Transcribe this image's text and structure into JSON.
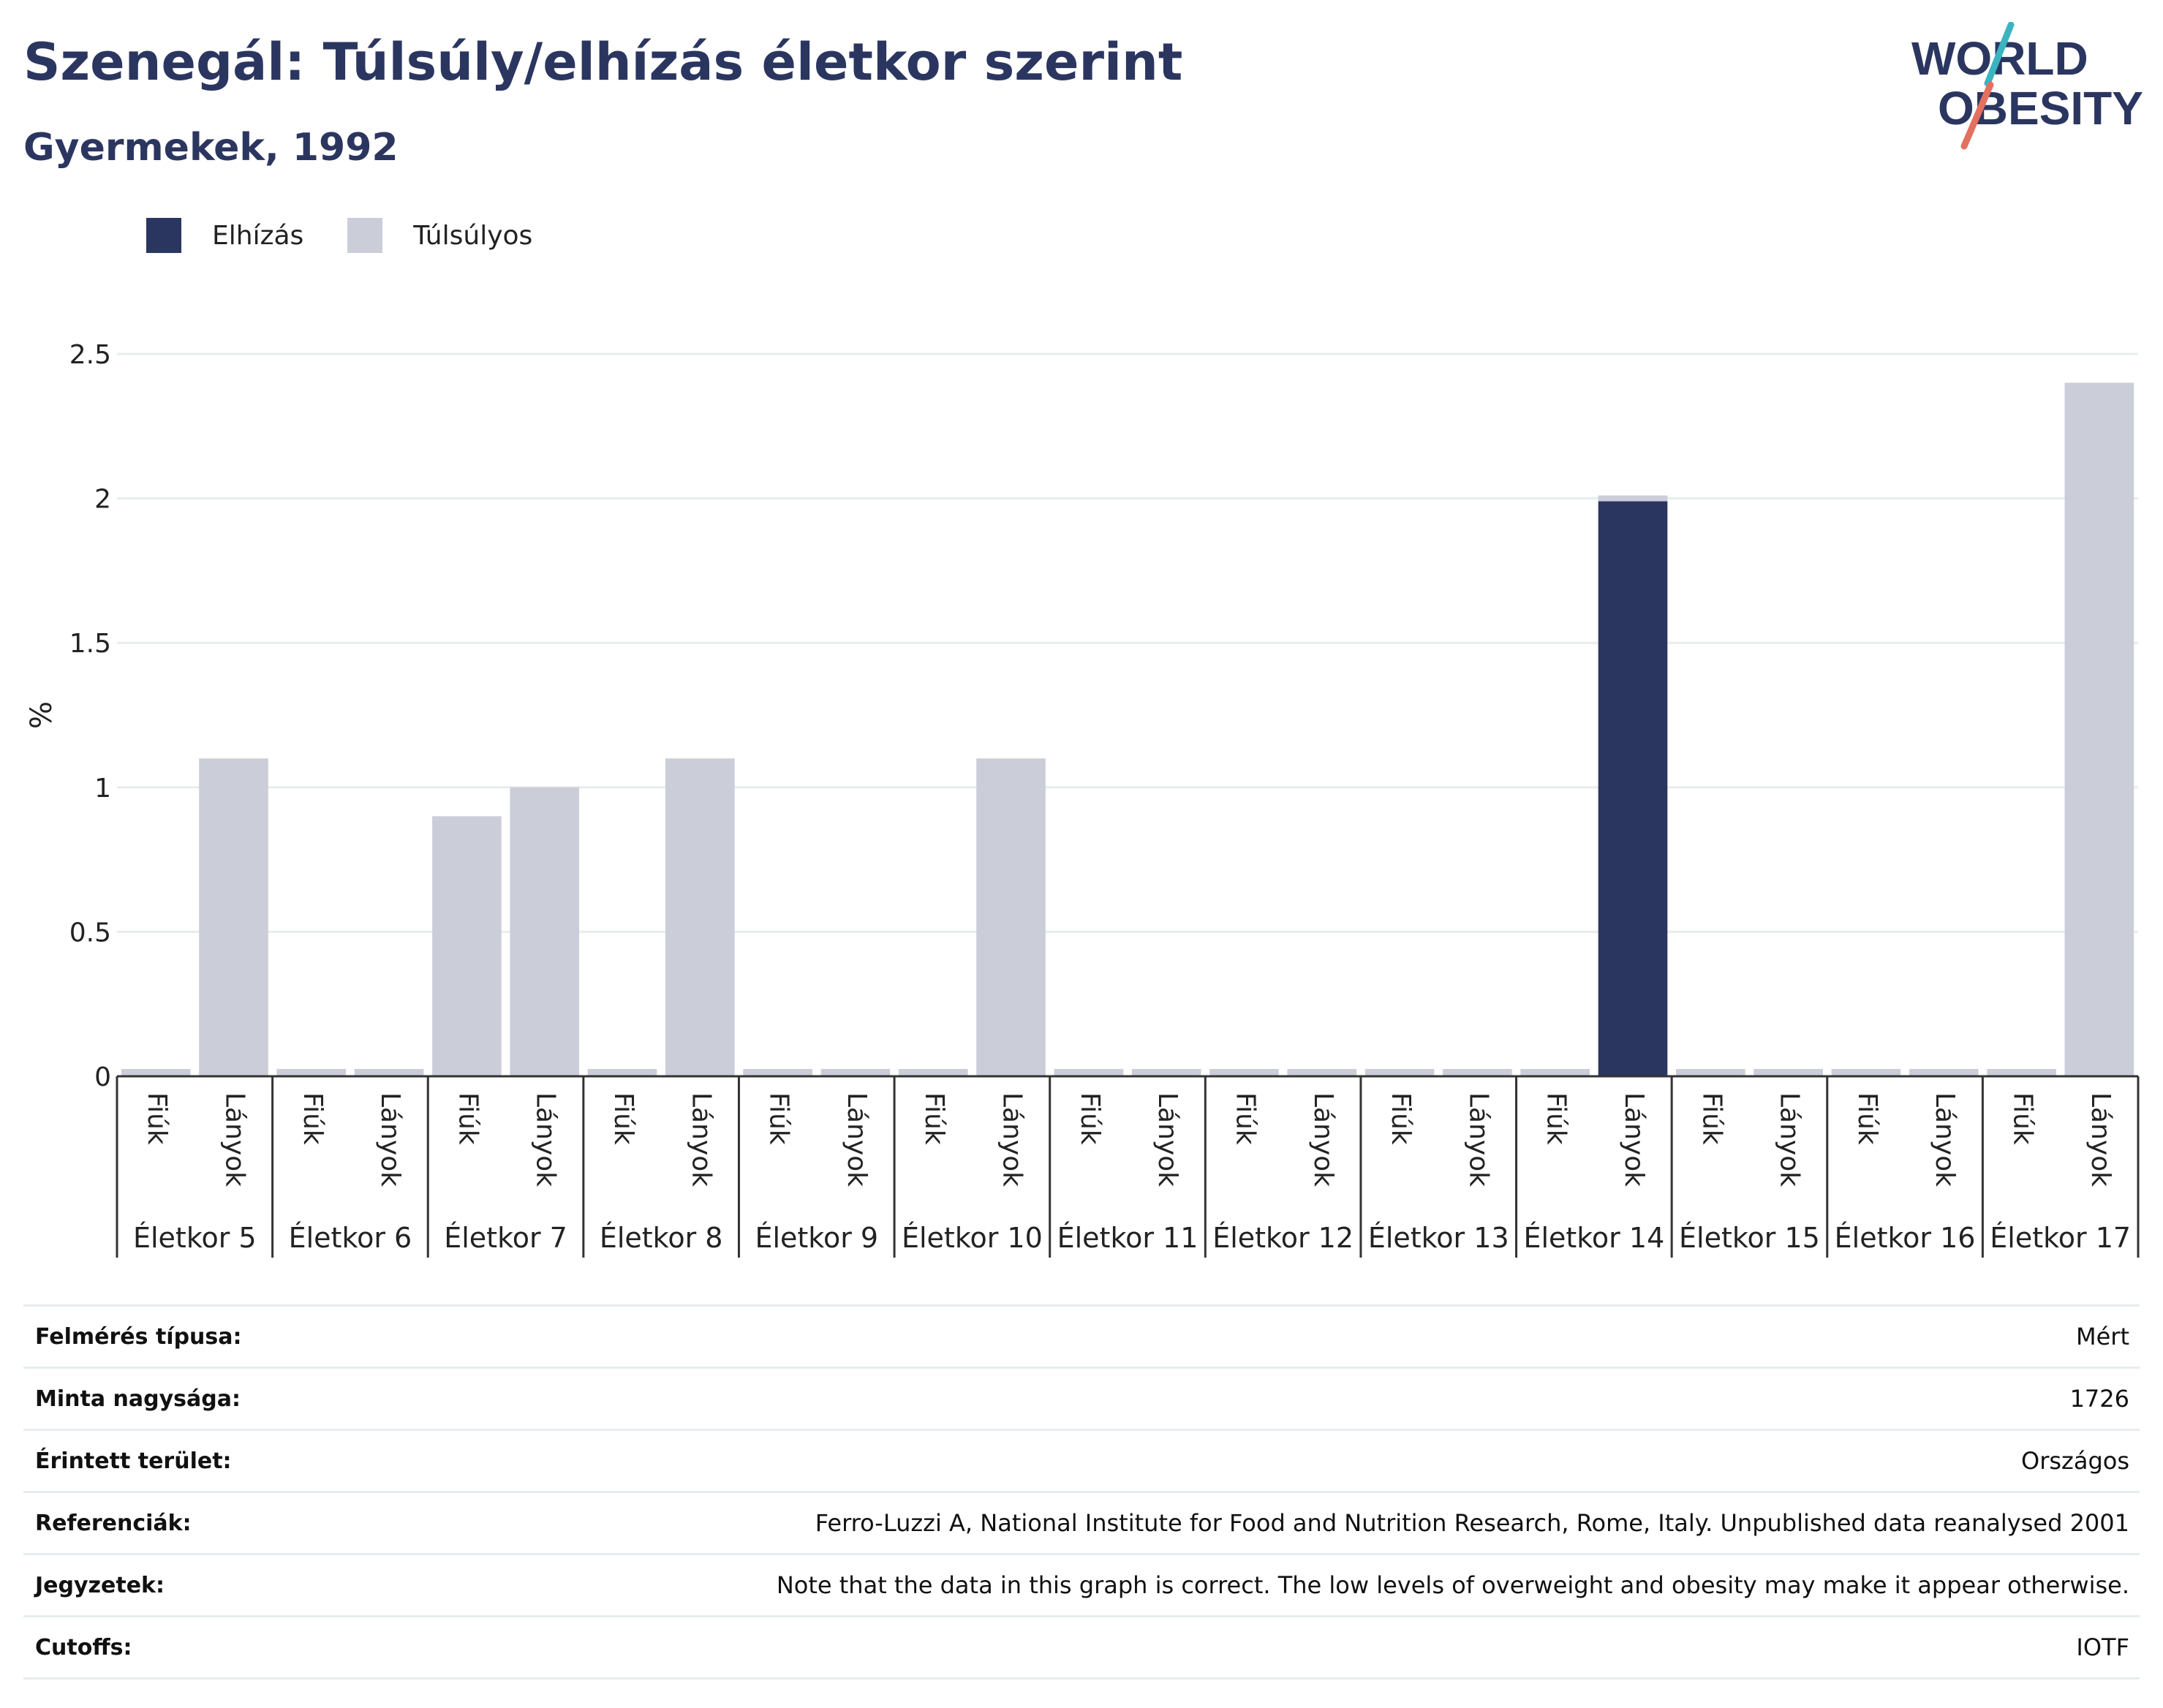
{
  "title": "Szenegál: Túlsúly/elhízás életkor szerint",
  "subtitle": "Gyermekek, 1992",
  "logo": {
    "line1": "WORLD",
    "line2": "OBESITY"
  },
  "colors": {
    "obesity": "#2b3660",
    "overweight": "#cbcdd8",
    "grid": "#e8eced",
    "text": "#2b3660"
  },
  "legend": [
    {
      "label": "Elhízás",
      "color": "#2b3660"
    },
    {
      "label": "Túlsúlyos",
      "color": "#cbcdd8"
    }
  ],
  "chart_data": {
    "type": "bar",
    "stacked": true,
    "ylabel": "%",
    "ylim": [
      0,
      2.5
    ],
    "yticks": [
      0,
      0.5,
      1,
      1.5,
      2,
      2.5
    ],
    "ytick_labels": [
      "0",
      "0.5",
      "1",
      "1.5",
      "2",
      "2.5"
    ],
    "groups": [
      "Életkor 5",
      "Életkor 6",
      "Életkor 7",
      "Életkor 8",
      "Életkor 9",
      "Életkor 10",
      "Életkor 11",
      "Életkor 12",
      "Életkor 13",
      "Életkor 14",
      "Életkor 15",
      "Életkor 16",
      "Életkor 17"
    ],
    "subcategories": [
      "Fiúk",
      "Lányok"
    ],
    "series": [
      {
        "name": "Elhízás",
        "values": [
          0,
          0,
          0,
          0,
          0,
          0,
          0,
          0,
          0,
          0,
          0,
          0,
          0,
          0,
          0,
          0,
          0,
          0,
          0,
          1.99,
          0,
          0,
          0,
          0,
          0,
          0
        ]
      },
      {
        "name": "Túlsúlyos",
        "values": [
          0,
          1.1,
          0,
          0,
          0.9,
          1.0,
          0,
          1.1,
          0,
          0,
          0,
          1.1,
          0,
          0,
          0,
          0,
          0,
          0,
          0,
          0.02,
          0,
          0,
          0,
          0,
          0,
          2.4
        ]
      }
    ],
    "grid": true,
    "legend_position": "top-left"
  },
  "meta": [
    {
      "key": "Felmérés típusa:",
      "value": "Mért"
    },
    {
      "key": "Minta nagysága:",
      "value": "1726"
    },
    {
      "key": "Érintett terület:",
      "value": "Országos"
    },
    {
      "key": "Referenciák:",
      "value": "Ferro-Luzzi A, National Institute for Food and Nutrition Research, Rome, Italy. Unpublished data reanalysed 2001"
    },
    {
      "key": "Jegyzetek:",
      "value": "Note that the data in this graph is correct. The low levels of overweight and obesity may make it appear otherwise."
    },
    {
      "key": "Cutoffs:",
      "value": "IOTF"
    }
  ]
}
